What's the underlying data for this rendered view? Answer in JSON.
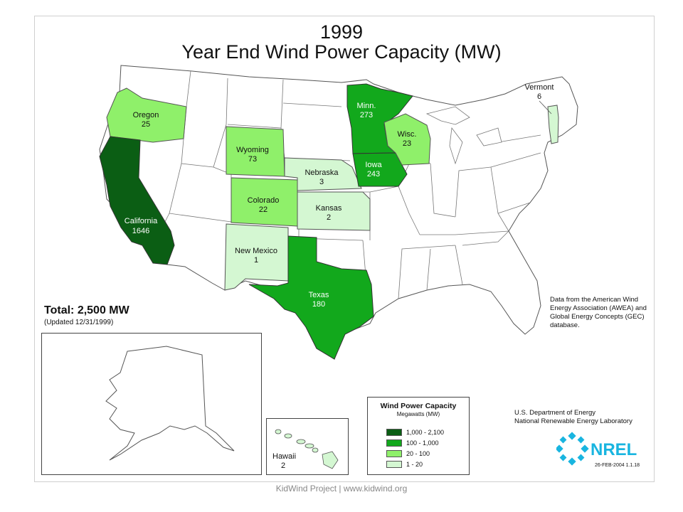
{
  "map": {
    "title_year": "1999",
    "title_main": "Year End Wind Power Capacity (MW)",
    "total_label": "Total:",
    "total_value": "2,500 MW",
    "updated": "(Updated 12/31/1999)",
    "source_note": "Data from the American Wind Energy Association (AWEA) and Global Energy Concepts (GEC) database.",
    "agency_line1": "U.S. Department of Energy",
    "agency_line2": "National Renewable Energy Laboratory",
    "logo_text": "NREL",
    "doc_id": "26-FEB-2004 1.1.18",
    "states": [
      {
        "name": "California",
        "value": "1646",
        "category": "1,000 - 2,100"
      },
      {
        "name": "Oregon",
        "value": "25",
        "category": "20 - 100"
      },
      {
        "name": "Wyoming",
        "value": "73",
        "category": "20 - 100"
      },
      {
        "name": "Colorado",
        "value": "22",
        "category": "20 - 100"
      },
      {
        "name": "New Mexico",
        "value": "1",
        "category": "1 - 20"
      },
      {
        "name": "Nebraska",
        "value": "3",
        "category": "1 - 20"
      },
      {
        "name": "Kansas",
        "value": "2",
        "category": "1 - 20"
      },
      {
        "name": "Texas",
        "value": "180",
        "category": "100 - 1,000"
      },
      {
        "name": "Minn.",
        "value": "273",
        "category": "100 - 1,000"
      },
      {
        "name": "Iowa",
        "value": "243",
        "category": "100 - 1,000"
      },
      {
        "name": "Wisc.",
        "value": "23",
        "category": "20 - 100"
      },
      {
        "name": "Vermont",
        "value": "6",
        "category": "1 - 20"
      },
      {
        "name": "Hawaii",
        "value": "2",
        "category": "1 - 20"
      }
    ],
    "legend": {
      "title": "Wind Power Capacity",
      "subtitle": "Megawatts (MW)",
      "classes": [
        {
          "label": "1,000 - 2,100",
          "color": "#0b5e14"
        },
        {
          "label": "100 - 1,000",
          "color": "#12a81c"
        },
        {
          "label": "20 - 100",
          "color": "#8ff06a"
        },
        {
          "label": "1 - 20",
          "color": "#d4f7d2"
        }
      ]
    }
  },
  "footer": {
    "text": "KidWind Project    |    www.kidwind.org"
  }
}
